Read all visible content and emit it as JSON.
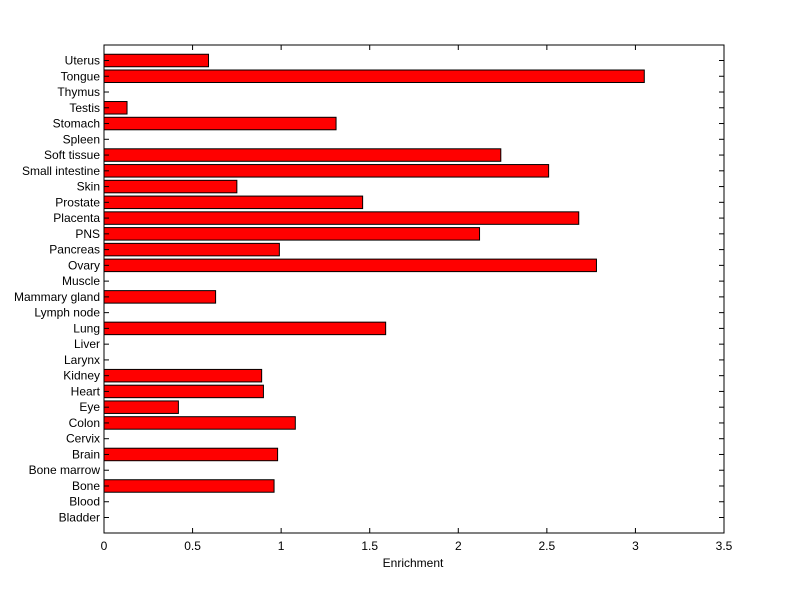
{
  "chart_data": {
    "type": "bar",
    "orientation": "horizontal",
    "categories": [
      "Bladder",
      "Blood",
      "Bone",
      "Bone marrow",
      "Brain",
      "Cervix",
      "Colon",
      "Eye",
      "Heart",
      "Kidney",
      "Larynx",
      "Liver",
      "Lung",
      "Lymph node",
      "Mammary gland",
      "Muscle",
      "Ovary",
      "Pancreas",
      "PNS",
      "Placenta",
      "Prostate",
      "Skin",
      "Small intestine",
      "Soft tissue",
      "Spleen",
      "Stomach",
      "Testis",
      "Thymus",
      "Tongue",
      "Uterus"
    ],
    "values": [
      0,
      0,
      0.96,
      0,
      0.98,
      0,
      1.08,
      0.42,
      0.9,
      0.89,
      0,
      0,
      1.59,
      0,
      0.63,
      0,
      2.78,
      0.99,
      2.12,
      2.68,
      1.46,
      0.75,
      2.51,
      2.24,
      0,
      1.31,
      0.13,
      0,
      3.05,
      0.59
    ],
    "xlabel": "Enrichment",
    "ylabel": "",
    "title": "",
    "xlim": [
      0,
      3.5
    ],
    "xticks": [
      "0",
      "0.5",
      "1",
      "1.5",
      "2",
      "2.5",
      "3",
      "3.5"
    ],
    "bar_color": "#ff0000",
    "grid": false
  }
}
